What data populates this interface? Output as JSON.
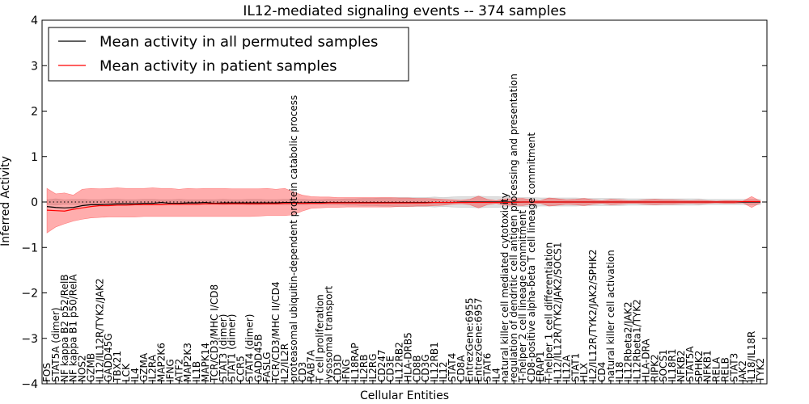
{
  "chart_data": {
    "type": "line",
    "title": "IL12-mediated signaling events -- 374 samples",
    "xlabel": "Cellular Entities",
    "ylabel": "Inferred Activity",
    "ylim": [
      -4,
      4
    ],
    "yticks": [
      -4,
      -3,
      -2,
      -1,
      0,
      1,
      2,
      3,
      4
    ],
    "legend": {
      "placement": "top-left",
      "entries": [
        {
          "label": "Mean activity in all permuted samples",
          "color": "#000000"
        },
        {
          "label": "Mean activity in patient samples",
          "color": "#ff0000"
        }
      ]
    },
    "colors": {
      "patient_line": "#ff0000",
      "patient_band": "#ff0000",
      "permuted_line": "#000000",
      "permuted_band": "#808080"
    },
    "categories": [
      "FOS",
      "STAT5A (dimer)",
      "NF kappa B2 p52/RelB",
      "NF kappa B1 p50/RelA",
      "NOS2",
      "GZMB",
      "IL12/IL12R/TYK2/JAK2",
      "GADD45G",
      "TBX21",
      "LCK",
      "IL4",
      "GZMA",
      "IL2RA",
      "MAP2K6",
      "IFNG",
      "ATF2",
      "MAP2K3",
      "IL1B",
      "MAPK14",
      "TCR/CD3/MHC I/CD8",
      "STAT3 (dimer)",
      "STAT1 (dimer)",
      "CCR5",
      "STAT4 (dimer)",
      "GADD45B",
      "FASLG",
      "TCR/CD3/MHC II/CD4",
      "IL2/IL2R",
      "proteasomal ubiquitin-dependent protein catabolic process",
      "CD3",
      "RAB7A",
      "T cell proliferation",
      "lysosomal transport",
      "CD3D",
      "IFNG",
      "IL18RAP",
      "IL2RB",
      "IL2RG",
      "CD247",
      "CD3E",
      "IL12RB2",
      "HLA-DRB5",
      "CD8B",
      "CD3G",
      "IL12RB1",
      "IL12",
      "STAT4",
      "CD8A",
      "EntrezGene:6955",
      "EntrezGene:6957",
      "STAT6",
      "IL4",
      "natural killer cell mediated cytotoxicity",
      "regulation of dendritic cell antigen processing and presentation",
      "T-helper 2 cell lineage commitment",
      "CD8-positive alpha-beta T cell lineage commitment",
      "ERAP1",
      "T-helper 1 cell differentiation",
      "IL12/IL12R/TYK2/JAK2/SOCS1",
      "IL12A",
      "STAT1",
      "HLX",
      "IL2/IL12R/TYK2/JAK2/SPHK2",
      "CD4",
      "natural killer cell activation",
      "IL18",
      "IL12Rbeta2/JAK2",
      "IL12Rbeta1/TYK2",
      "HLA-DRA",
      "RIPK2",
      "SOCS1",
      "IL18R1",
      "NFKB2",
      "STAT5A",
      "SPHK2",
      "NFKB1",
      "RELA",
      "RELB",
      "STAT3",
      "JAK2",
      "IL18/IL18R",
      "TYK2"
    ],
    "series": [
      {
        "name": "Mean activity in all permuted samples",
        "values": [
          -0.1,
          -0.12,
          -0.13,
          -0.12,
          -0.08,
          -0.06,
          -0.06,
          -0.05,
          -0.04,
          -0.04,
          -0.04,
          -0.03,
          -0.03,
          -0.01,
          -0.03,
          -0.03,
          -0.02,
          -0.02,
          -0.01,
          -0.03,
          -0.02,
          -0.02,
          -0.02,
          -0.02,
          -0.02,
          -0.02,
          -0.02,
          -0.01,
          -0.01,
          -0.02,
          -0.01,
          -0.01,
          -0.01,
          -0.01,
          -0.01,
          -0.01,
          -0.01,
          -0.01,
          -0.01,
          -0.01,
          -0.01,
          -0.01,
          -0.01,
          -0.01,
          -0.01,
          -0.01,
          -0.01,
          0,
          0,
          0,
          0,
          0,
          0,
          0,
          0,
          0,
          0,
          0,
          0,
          0,
          0,
          0,
          0,
          0,
          0,
          0,
          0,
          0,
          0,
          0,
          0,
          0,
          0,
          0,
          0,
          0,
          0,
          0,
          0,
          0,
          0,
          0
        ]
      },
      {
        "name": "Mean activity in patient samples",
        "values": [
          -0.18,
          -0.19,
          -0.2,
          -0.16,
          -0.13,
          -0.1,
          -0.08,
          -0.08,
          -0.07,
          -0.07,
          -0.06,
          -0.06,
          -0.06,
          -0.06,
          -0.05,
          -0.05,
          -0.05,
          -0.05,
          -0.04,
          -0.04,
          -0.04,
          -0.04,
          -0.04,
          -0.04,
          -0.04,
          -0.04,
          -0.04,
          -0.03,
          -0.03,
          -0.03,
          -0.03,
          -0.03,
          -0.02,
          -0.02,
          -0.02,
          -0.02,
          -0.02,
          -0.02,
          -0.02,
          -0.02,
          -0.02,
          -0.02,
          -0.02,
          -0.02,
          -0.01,
          -0.01,
          -0.01,
          -0.01,
          -0.01,
          -0.01,
          -0.01,
          -0.01,
          -0.01,
          -0.01,
          0,
          0,
          0,
          0,
          0,
          0,
          0,
          0,
          0,
          0,
          0,
          0,
          0,
          0,
          0,
          0,
          0,
          0,
          0,
          0,
          0,
          0,
          0,
          0,
          0,
          0.01,
          0.01,
          0.01
        ]
      }
    ],
    "bands": [
      {
        "name": "Permuted samples spread",
        "lower": [
          -0.05,
          -0.07,
          -0.05,
          -0.06,
          -0.06,
          -0.05,
          -0.05,
          -0.06,
          -0.06,
          -0.05,
          -0.05,
          -0.06,
          -0.06,
          -0.05,
          -0.05,
          -0.06,
          -0.05,
          -0.05,
          -0.05,
          -0.05,
          -0.06,
          -0.05,
          -0.05,
          -0.06,
          -0.06,
          -0.05,
          -0.05,
          -0.06,
          -0.06,
          -0.06,
          -0.05,
          -0.05,
          -0.06,
          -0.06,
          -0.07,
          -0.07,
          -0.08,
          -0.08,
          -0.09,
          -0.09,
          -0.1,
          -0.1,
          -0.1,
          -0.1,
          -0.11,
          -0.1,
          -0.11,
          -0.12,
          -0.12,
          -0.13,
          -0.12,
          -0.12,
          -0.11,
          -0.1,
          -0.1,
          -0.1,
          -0.09,
          -0.09,
          -0.09,
          -0.09,
          -0.09,
          -0.08,
          -0.08,
          -0.08,
          -0.08,
          -0.08,
          -0.07,
          -0.07,
          -0.07,
          -0.07,
          -0.07,
          -0.07,
          -0.07,
          -0.07,
          -0.07,
          -0.06,
          -0.06,
          -0.06,
          -0.06,
          -0.06,
          -0.06,
          -0.06
        ],
        "upper": [
          0.05,
          0.07,
          0.05,
          0.06,
          0.06,
          0.05,
          0.05,
          0.06,
          0.06,
          0.05,
          0.05,
          0.06,
          0.06,
          0.05,
          0.05,
          0.06,
          0.05,
          0.05,
          0.05,
          0.05,
          0.06,
          0.05,
          0.05,
          0.06,
          0.06,
          0.05,
          0.05,
          0.06,
          0.06,
          0.06,
          0.05,
          0.05,
          0.06,
          0.06,
          0.07,
          0.07,
          0.08,
          0.08,
          0.09,
          0.09,
          0.1,
          0.1,
          0.1,
          0.1,
          0.11,
          0.1,
          0.11,
          0.12,
          0.12,
          0.13,
          0.12,
          0.12,
          0.11,
          0.1,
          0.1,
          0.1,
          0.09,
          0.09,
          0.09,
          0.09,
          0.09,
          0.08,
          0.08,
          0.08,
          0.08,
          0.08,
          0.07,
          0.07,
          0.07,
          0.07,
          0.07,
          0.07,
          0.07,
          0.07,
          0.07,
          0.06,
          0.06,
          0.06,
          0.06,
          0.06,
          0.06,
          0.06
        ]
      },
      {
        "name": "Patient samples spread",
        "lower": [
          -0.68,
          -0.55,
          -0.48,
          -0.42,
          -0.38,
          -0.35,
          -0.34,
          -0.33,
          -0.33,
          -0.33,
          -0.33,
          -0.32,
          -0.32,
          -0.32,
          -0.32,
          -0.32,
          -0.32,
          -0.32,
          -0.32,
          -0.32,
          -0.32,
          -0.32,
          -0.32,
          -0.32,
          -0.31,
          -0.3,
          -0.3,
          -0.3,
          -0.28,
          -0.2,
          -0.14,
          -0.13,
          -0.12,
          -0.12,
          -0.11,
          -0.11,
          -0.11,
          -0.11,
          -0.11,
          -0.11,
          -0.1,
          -0.1,
          -0.09,
          -0.09,
          -0.08,
          -0.07,
          -0.05,
          -0.04,
          -0.06,
          -0.13,
          -0.06,
          -0.03,
          -0.07,
          -0.07,
          -0.08,
          -0.05,
          -0.03,
          -0.09,
          -0.07,
          -0.05,
          -0.06,
          -0.08,
          -0.05,
          -0.03,
          -0.06,
          -0.05,
          -0.03,
          -0.03,
          -0.05,
          -0.06,
          -0.05,
          -0.05,
          -0.04,
          -0.03,
          -0.04,
          -0.03,
          -0.02,
          -0.03,
          -0.03,
          -0.02,
          -0.12,
          -0.02
        ],
        "upper": [
          0.3,
          0.18,
          0.2,
          0.15,
          0.28,
          0.3,
          0.29,
          0.3,
          0.31,
          0.3,
          0.3,
          0.3,
          0.31,
          0.3,
          0.3,
          0.28,
          0.3,
          0.29,
          0.3,
          0.3,
          0.3,
          0.29,
          0.29,
          0.29,
          0.29,
          0.3,
          0.28,
          0.3,
          0.22,
          0.15,
          0.12,
          0.11,
          0.11,
          0.1,
          0.1,
          0.1,
          0.1,
          0.1,
          0.1,
          0.1,
          0.09,
          0.09,
          0.08,
          0.08,
          0.07,
          0.06,
          0.05,
          0.04,
          0.06,
          0.13,
          0.06,
          0.03,
          0.07,
          0.07,
          0.08,
          0.05,
          0.03,
          0.09,
          0.07,
          0.05,
          0.06,
          0.08,
          0.05,
          0.03,
          0.06,
          0.05,
          0.03,
          0.03,
          0.05,
          0.06,
          0.05,
          0.05,
          0.04,
          0.03,
          0.04,
          0.03,
          0.02,
          0.03,
          0.03,
          0.02,
          0.12,
          0.02
        ]
      }
    ]
  }
}
